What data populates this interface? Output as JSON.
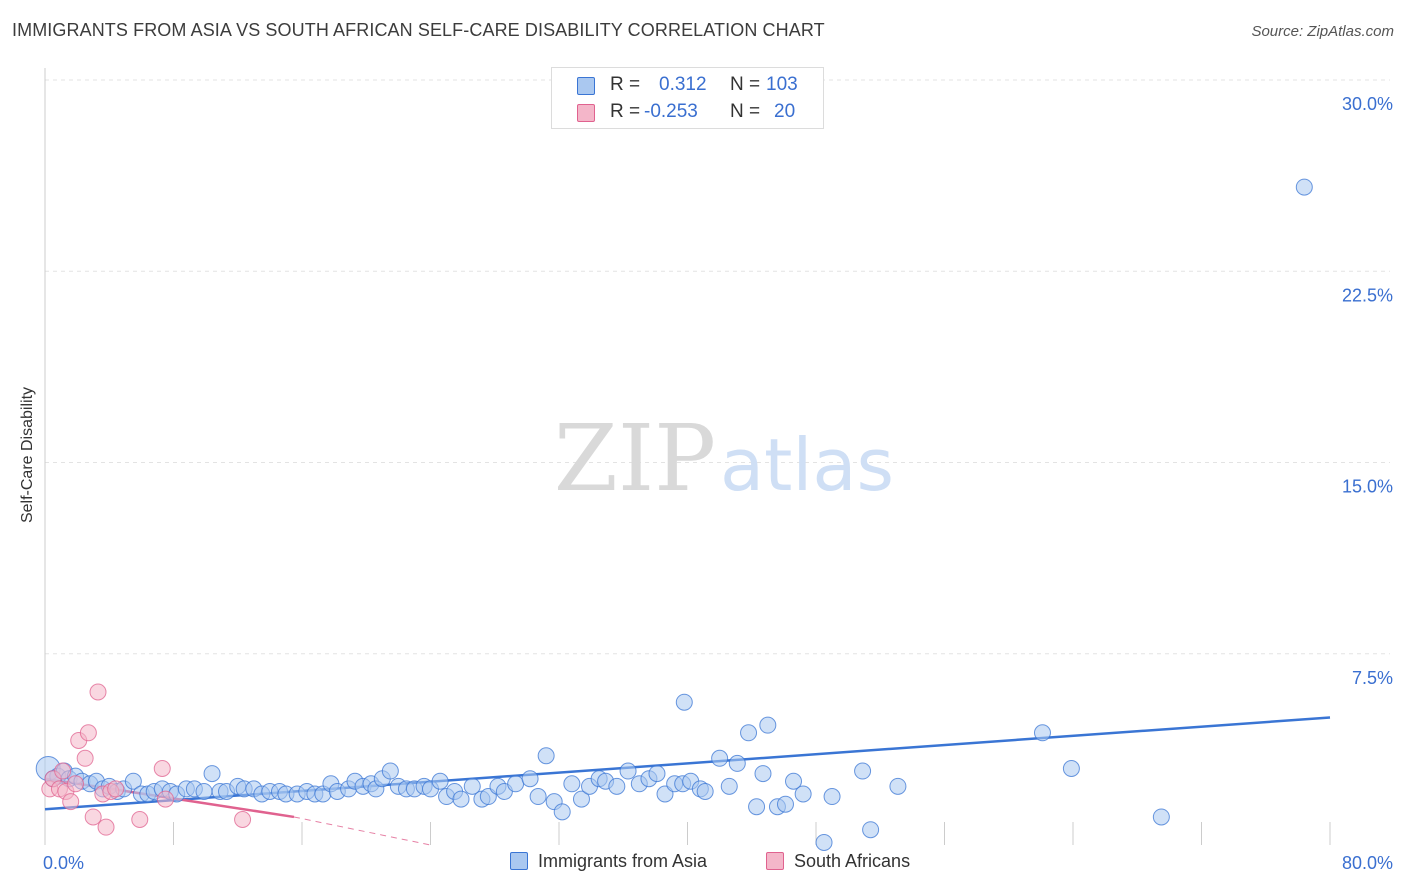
{
  "title": "IMMIGRANTS FROM ASIA VS SOUTH AFRICAN SELF-CARE DISABILITY CORRELATION CHART",
  "source": "Source: ZipAtlas.com",
  "watermark": {
    "zip": "ZIP",
    "atlas": "atlas"
  },
  "colors": {
    "blue": "#3a75d4",
    "blue_fill": "#aac8f0",
    "pink": "#e0628f",
    "pink_fill": "#f4b6c9",
    "grid": "#e3e3e3",
    "tick_text": "#3a6fd0"
  },
  "legend": {
    "r_label": "R =",
    "n_label": "N =",
    "series1": {
      "r": "0.312",
      "n": "103"
    },
    "series2": {
      "r": "-0.253",
      "n": "20"
    }
  },
  "chart_data": {
    "type": "scatter",
    "title": "IMMIGRANTS FROM ASIA VS SOUTH AFRICAN SELF-CARE DISABILITY CORRELATION CHART",
    "xlabel": "",
    "ylabel": "Self-Care Disability",
    "xlim": [
      0,
      80
    ],
    "ylim": [
      0,
      30
    ],
    "x_tick_labels": [
      "0.0%",
      "80.0%"
    ],
    "y_ticks": [
      7.5,
      15.0,
      22.5,
      30.0
    ],
    "y_tick_labels": [
      "7.5%",
      "15.0%",
      "22.5%",
      "30.0%"
    ],
    "grid": true,
    "legend_position": "top-center",
    "series": [
      {
        "name": "Immigrants from Asia",
        "color": "#3a75d4",
        "trend": {
          "x": [
            0,
            80
          ],
          "y": [
            1.4,
            5.0
          ]
        },
        "points": [
          [
            0.2,
            3.0
          ],
          [
            0.8,
            2.7
          ],
          [
            1.2,
            2.9
          ],
          [
            1.5,
            2.6
          ],
          [
            1.9,
            2.7
          ],
          [
            2.3,
            2.5
          ],
          [
            2.8,
            2.4
          ],
          [
            3.2,
            2.5
          ],
          [
            3.6,
            2.2
          ],
          [
            4.0,
            2.3
          ],
          [
            4.5,
            2.1
          ],
          [
            4.9,
            2.2
          ],
          [
            5.5,
            2.5
          ],
          [
            6.0,
            2.0
          ],
          [
            6.4,
            2.0
          ],
          [
            6.8,
            2.1
          ],
          [
            7.3,
            2.2
          ],
          [
            7.8,
            2.1
          ],
          [
            8.2,
            2.0
          ],
          [
            8.8,
            2.2
          ],
          [
            9.3,
            2.2
          ],
          [
            9.9,
            2.1
          ],
          [
            10.4,
            2.8
          ],
          [
            10.9,
            2.1
          ],
          [
            11.3,
            2.1
          ],
          [
            12.0,
            2.3
          ],
          [
            12.4,
            2.2
          ],
          [
            13.0,
            2.2
          ],
          [
            13.5,
            2.0
          ],
          [
            14.0,
            2.1
          ],
          [
            14.6,
            2.1
          ],
          [
            15.0,
            2.0
          ],
          [
            15.7,
            2.0
          ],
          [
            16.3,
            2.1
          ],
          [
            16.8,
            2.0
          ],
          [
            17.3,
            2.0
          ],
          [
            17.8,
            2.4
          ],
          [
            18.2,
            2.1
          ],
          [
            18.9,
            2.2
          ],
          [
            19.3,
            2.5
          ],
          [
            19.8,
            2.3
          ],
          [
            20.3,
            2.4
          ],
          [
            20.6,
            2.2
          ],
          [
            21.0,
            2.6
          ],
          [
            21.5,
            2.9
          ],
          [
            22.0,
            2.3
          ],
          [
            22.5,
            2.2
          ],
          [
            23.0,
            2.2
          ],
          [
            23.6,
            2.3
          ],
          [
            24.0,
            2.2
          ],
          [
            24.6,
            2.5
          ],
          [
            25.0,
            1.9
          ],
          [
            25.5,
            2.1
          ],
          [
            25.9,
            1.8
          ],
          [
            26.6,
            2.3
          ],
          [
            27.2,
            1.8
          ],
          [
            27.6,
            1.9
          ],
          [
            28.2,
            2.3
          ],
          [
            28.6,
            2.1
          ],
          [
            29.3,
            2.4
          ],
          [
            30.2,
            2.6
          ],
          [
            30.7,
            1.9
          ],
          [
            31.2,
            3.5
          ],
          [
            31.7,
            1.7
          ],
          [
            32.2,
            1.3
          ],
          [
            32.8,
            2.4
          ],
          [
            33.4,
            1.8
          ],
          [
            33.9,
            2.3
          ],
          [
            34.5,
            2.6
          ],
          [
            34.9,
            2.5
          ],
          [
            35.6,
            2.3
          ],
          [
            36.3,
            2.9
          ],
          [
            37.0,
            2.4
          ],
          [
            37.6,
            2.6
          ],
          [
            38.1,
            2.8
          ],
          [
            38.6,
            2.0
          ],
          [
            39.2,
            2.4
          ],
          [
            39.7,
            2.4
          ],
          [
            40.2,
            2.5
          ],
          [
            40.8,
            2.2
          ],
          [
            41.1,
            2.1
          ],
          [
            42.0,
            3.4
          ],
          [
            42.6,
            2.3
          ],
          [
            43.1,
            3.2
          ],
          [
            43.8,
            4.4
          ],
          [
            44.3,
            1.5
          ],
          [
            44.7,
            2.8
          ],
          [
            45.0,
            4.7
          ],
          [
            45.6,
            1.5
          ],
          [
            46.1,
            1.6
          ],
          [
            46.6,
            2.5
          ],
          [
            47.2,
            2.0
          ],
          [
            48.5,
            0.1
          ],
          [
            49.0,
            1.9
          ],
          [
            50.9,
            2.9
          ],
          [
            51.4,
            0.6
          ],
          [
            53.1,
            2.3
          ],
          [
            62.1,
            4.4
          ],
          [
            63.9,
            3.0
          ],
          [
            69.5,
            1.1
          ],
          [
            78.4,
            25.8
          ],
          [
            39.8,
            5.6
          ],
          [
            0.5,
            2.6
          ]
        ]
      },
      {
        "name": "South Africans",
        "color": "#e0628f",
        "trend": {
          "x": [
            0,
            15.5
          ],
          "y": [
            2.6,
            1.1
          ]
        },
        "trend_extended": {
          "x": [
            15.5,
            24.0
          ],
          "y": [
            1.1,
            0.0
          ]
        },
        "points": [
          [
            0.3,
            2.2
          ],
          [
            0.5,
            2.6
          ],
          [
            0.9,
            2.2
          ],
          [
            1.1,
            2.9
          ],
          [
            1.3,
            2.1
          ],
          [
            1.6,
            1.7
          ],
          [
            1.9,
            2.4
          ],
          [
            2.1,
            4.1
          ],
          [
            2.5,
            3.4
          ],
          [
            2.7,
            4.4
          ],
          [
            3.0,
            1.1
          ],
          [
            3.3,
            6.0
          ],
          [
            3.6,
            2.0
          ],
          [
            3.8,
            0.7
          ],
          [
            4.1,
            2.1
          ],
          [
            4.4,
            2.2
          ],
          [
            5.9,
            1.0
          ],
          [
            7.3,
            3.0
          ],
          [
            7.5,
            1.8
          ],
          [
            12.3,
            1.0
          ]
        ]
      }
    ]
  },
  "bottom_legend": {
    "series1": "Immigrants from Asia",
    "series2": "South Africans"
  }
}
